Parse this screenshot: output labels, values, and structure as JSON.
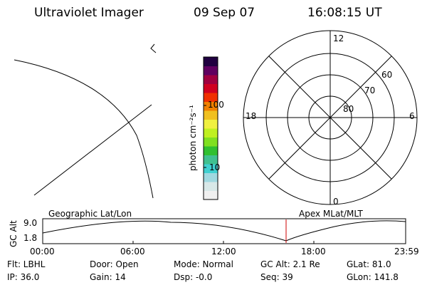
{
  "header": {
    "instrument": "Ultraviolet Imager",
    "date": "09 Sep 07",
    "time": "16:08:15 UT"
  },
  "colorbar": {
    "unit_label": "photon cm⁻²s⁻¹",
    "tick_100": "100",
    "tick_10": "10",
    "colors": [
      "#f0f0f0",
      "#d8e8e8",
      "#a0d8e0",
      "#40d0d0",
      "#40c090",
      "#30c030",
      "#80e020",
      "#c0f020",
      "#f0f040",
      "#f0c020",
      "#f08000",
      "#f03000",
      "#d00020",
      "#a00040",
      "#600060",
      "#200040"
    ]
  },
  "polar": {
    "lat_labels": [
      "80",
      "70",
      "60"
    ],
    "mlt_labels": {
      "top": "12",
      "bottom": "0",
      "left": "18",
      "right": "6"
    }
  },
  "timeline": {
    "ylabel": "GC Alt",
    "ymax": "9.0",
    "ymin": "1.8",
    "left_title": "Geographic Lat/Lon",
    "right_title": "Apex MLat/MLT",
    "ticks": [
      "00:00",
      "06:00",
      "12:00",
      "18:00",
      "23:59"
    ],
    "current_marker_color": "#cc0000"
  },
  "status": {
    "flt": "Flt: LBHL",
    "ip": "IP: 36.0",
    "door": "Door: Open",
    "gain": "Gain: 14",
    "mode": "Mode: Normal",
    "dsp": "Dsp:    -0.0",
    "gc_alt": "GC Alt: 2.1 Re",
    "seq": "Seq: 39",
    "glat": "GLat:  81.0",
    "glon": "GLon: 141.8"
  }
}
